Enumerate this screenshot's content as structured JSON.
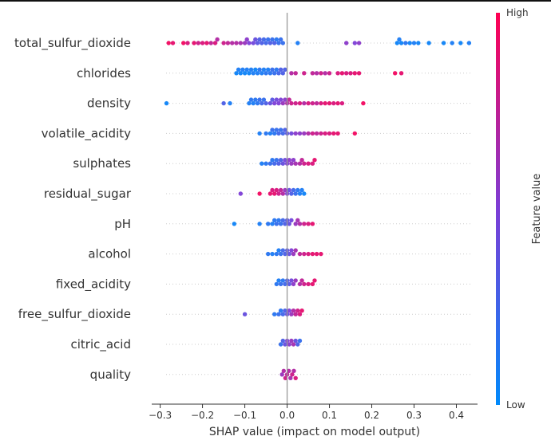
{
  "chart_data": {
    "type": "scatter",
    "subtype": "shap-beeswarm",
    "title": "",
    "xlabel": "SHAP value (impact on model output)",
    "ylabel": "",
    "xlim": [
      -0.32,
      0.45
    ],
    "xticks": [
      {
        "value": -0.3,
        "label": "−0.3"
      },
      {
        "value": -0.2,
        "label": "−0.2"
      },
      {
        "value": -0.1,
        "label": "−0.1"
      },
      {
        "value": 0.0,
        "label": "0.0"
      },
      {
        "value": 0.1,
        "label": "0.1"
      },
      {
        "value": 0.2,
        "label": "0.2"
      },
      {
        "value": 0.3,
        "label": "0.3"
      },
      {
        "value": 0.4,
        "label": "0.4"
      }
    ],
    "colorbar": {
      "title": "Feature value",
      "high_label": "High",
      "low_label": "Low",
      "low_color": "#008afb",
      "mid_color": "#7c3dd6",
      "high_color": "#ff0052"
    },
    "features": [
      {
        "name": "total_sulfur_dioxide",
        "points": [
          [
            -0.28,
            0.95
          ],
          [
            -0.27,
            0.9
          ],
          [
            -0.245,
            0.95
          ],
          [
            -0.235,
            0.85
          ],
          [
            -0.22,
            0.9
          ],
          [
            -0.21,
            0.8
          ],
          [
            -0.2,
            0.85
          ],
          [
            -0.19,
            0.9
          ],
          [
            -0.18,
            0.75
          ],
          [
            -0.17,
            0.85
          ],
          [
            -0.165,
            0.7
          ],
          [
            -0.15,
            0.8
          ],
          [
            -0.14,
            0.75
          ],
          [
            -0.13,
            0.7
          ],
          [
            -0.12,
            0.7
          ],
          [
            -0.11,
            0.65
          ],
          [
            -0.1,
            0.6
          ],
          [
            -0.095,
            0.55
          ],
          [
            -0.09,
            0.5
          ],
          [
            -0.08,
            0.45
          ],
          [
            -0.075,
            0.4
          ],
          [
            -0.07,
            0.35
          ],
          [
            -0.065,
            0.3
          ],
          [
            -0.06,
            0.3
          ],
          [
            -0.055,
            0.25
          ],
          [
            -0.05,
            0.25
          ],
          [
            -0.045,
            0.2
          ],
          [
            -0.04,
            0.3
          ],
          [
            -0.035,
            0.2
          ],
          [
            -0.03,
            0.3
          ],
          [
            -0.025,
            0.15
          ],
          [
            -0.02,
            0.2
          ],
          [
            -0.015,
            0.2
          ],
          [
            -0.01,
            0.2
          ],
          [
            0.025,
            0.1
          ],
          [
            0.14,
            0.55
          ],
          [
            0.16,
            0.5
          ],
          [
            0.17,
            0.55
          ],
          [
            0.26,
            0.05
          ],
          [
            0.265,
            0.1
          ],
          [
            0.27,
            0.05
          ],
          [
            0.28,
            0.15
          ],
          [
            0.29,
            0.05
          ],
          [
            0.3,
            0.1
          ],
          [
            0.31,
            0.05
          ],
          [
            0.335,
            0.05
          ],
          [
            0.37,
            0.05
          ],
          [
            0.39,
            0.1
          ],
          [
            0.41,
            0.05
          ],
          [
            0.43,
            0.1
          ]
        ]
      },
      {
        "name": "chlorides",
        "points": [
          [
            -0.12,
            0.05
          ],
          [
            -0.115,
            0.1
          ],
          [
            -0.11,
            0.05
          ],
          [
            -0.105,
            0.1
          ],
          [
            -0.1,
            0.05
          ],
          [
            -0.095,
            0.1
          ],
          [
            -0.09,
            0.05
          ],
          [
            -0.085,
            0.1
          ],
          [
            -0.08,
            0.1
          ],
          [
            -0.075,
            0.05
          ],
          [
            -0.07,
            0.1
          ],
          [
            -0.065,
            0.15
          ],
          [
            -0.06,
            0.1
          ],
          [
            -0.055,
            0.1
          ],
          [
            -0.05,
            0.15
          ],
          [
            -0.045,
            0.1
          ],
          [
            -0.04,
            0.15
          ],
          [
            -0.035,
            0.2
          ],
          [
            -0.03,
            0.2
          ],
          [
            -0.025,
            0.15
          ],
          [
            -0.02,
            0.25
          ],
          [
            -0.015,
            0.3
          ],
          [
            -0.01,
            0.3
          ],
          [
            -0.005,
            0.3
          ],
          [
            0.01,
            0.7
          ],
          [
            0.02,
            0.75
          ],
          [
            0.04,
            0.8
          ],
          [
            0.06,
            0.75
          ],
          [
            0.07,
            0.7
          ],
          [
            0.08,
            0.8
          ],
          [
            0.09,
            0.7
          ],
          [
            0.1,
            0.8
          ],
          [
            0.12,
            0.85
          ],
          [
            0.13,
            0.9
          ],
          [
            0.14,
            0.85
          ],
          [
            0.15,
            0.85
          ],
          [
            0.16,
            0.9
          ],
          [
            0.17,
            0.9
          ],
          [
            0.255,
            0.95
          ],
          [
            0.27,
            0.9
          ]
        ]
      },
      {
        "name": "density",
        "points": [
          [
            -0.285,
            0.05
          ],
          [
            -0.15,
            0.3
          ],
          [
            -0.135,
            0.1
          ],
          [
            -0.09,
            0.1
          ],
          [
            -0.085,
            0.15
          ],
          [
            -0.08,
            0.1
          ],
          [
            -0.075,
            0.15
          ],
          [
            -0.07,
            0.15
          ],
          [
            -0.065,
            0.2
          ],
          [
            -0.06,
            0.25
          ],
          [
            -0.055,
            0.2
          ],
          [
            -0.05,
            0.3
          ],
          [
            -0.04,
            0.4
          ],
          [
            -0.035,
            0.35
          ],
          [
            -0.03,
            0.5
          ],
          [
            -0.025,
            0.45
          ],
          [
            -0.02,
            0.5
          ],
          [
            -0.015,
            0.5
          ],
          [
            -0.01,
            0.6
          ],
          [
            -0.005,
            0.55
          ],
          [
            0.0,
            0.7
          ],
          [
            0.005,
            0.75
          ],
          [
            0.01,
            0.8
          ],
          [
            0.02,
            0.8
          ],
          [
            0.03,
            0.85
          ],
          [
            0.04,
            0.7
          ],
          [
            0.05,
            0.85
          ],
          [
            0.06,
            0.8
          ],
          [
            0.07,
            0.75
          ],
          [
            0.08,
            0.85
          ],
          [
            0.09,
            0.9
          ],
          [
            0.1,
            0.9
          ],
          [
            0.11,
            0.85
          ],
          [
            0.12,
            0.9
          ],
          [
            0.13,
            0.85
          ],
          [
            0.18,
            0.95
          ]
        ]
      },
      {
        "name": "volatile_acidity",
        "points": [
          [
            -0.065,
            0.1
          ],
          [
            -0.05,
            0.15
          ],
          [
            -0.04,
            0.1
          ],
          [
            -0.035,
            0.2
          ],
          [
            -0.03,
            0.15
          ],
          [
            -0.025,
            0.2
          ],
          [
            -0.02,
            0.25
          ],
          [
            -0.015,
            0.2
          ],
          [
            -0.01,
            0.25
          ],
          [
            -0.005,
            0.3
          ],
          [
            0.0,
            0.35
          ],
          [
            0.01,
            0.45
          ],
          [
            0.02,
            0.55
          ],
          [
            0.03,
            0.55
          ],
          [
            0.04,
            0.6
          ],
          [
            0.05,
            0.7
          ],
          [
            0.06,
            0.8
          ],
          [
            0.07,
            0.75
          ],
          [
            0.08,
            0.8
          ],
          [
            0.09,
            0.85
          ],
          [
            0.1,
            0.85
          ],
          [
            0.11,
            0.9
          ],
          [
            0.12,
            0.9
          ],
          [
            0.16,
            0.95
          ]
        ]
      },
      {
        "name": "sulphates",
        "points": [
          [
            -0.06,
            0.1
          ],
          [
            -0.05,
            0.15
          ],
          [
            -0.04,
            0.2
          ],
          [
            -0.035,
            0.15
          ],
          [
            -0.03,
            0.25
          ],
          [
            -0.025,
            0.2
          ],
          [
            -0.02,
            0.3
          ],
          [
            -0.015,
            0.3
          ],
          [
            -0.01,
            0.4
          ],
          [
            -0.005,
            0.45
          ],
          [
            0.0,
            0.5
          ],
          [
            0.005,
            0.55
          ],
          [
            0.01,
            0.6
          ],
          [
            0.015,
            0.55
          ],
          [
            0.02,
            0.65
          ],
          [
            0.03,
            0.7
          ],
          [
            0.035,
            0.75
          ],
          [
            0.04,
            0.8
          ],
          [
            0.05,
            0.85
          ],
          [
            0.06,
            0.85
          ],
          [
            0.065,
            0.9
          ]
        ]
      },
      {
        "name": "residual_sugar",
        "points": [
          [
            -0.11,
            0.5
          ],
          [
            -0.065,
            0.95
          ],
          [
            -0.04,
            0.9
          ],
          [
            -0.035,
            0.85
          ],
          [
            -0.03,
            0.9
          ],
          [
            -0.025,
            0.85
          ],
          [
            -0.02,
            0.8
          ],
          [
            -0.015,
            0.75
          ],
          [
            -0.01,
            0.7
          ],
          [
            -0.005,
            0.6
          ],
          [
            0.0,
            0.5
          ],
          [
            0.005,
            0.4
          ],
          [
            0.01,
            0.3
          ],
          [
            0.015,
            0.25
          ],
          [
            0.02,
            0.2
          ],
          [
            0.025,
            0.15
          ],
          [
            0.03,
            0.1
          ],
          [
            0.035,
            0.1
          ],
          [
            0.04,
            0.05
          ]
        ]
      },
      {
        "name": "pH",
        "points": [
          [
            -0.125,
            0.05
          ],
          [
            -0.065,
            0.1
          ],
          [
            -0.045,
            0.15
          ],
          [
            -0.035,
            0.1
          ],
          [
            -0.03,
            0.15
          ],
          [
            -0.025,
            0.2
          ],
          [
            -0.02,
            0.15
          ],
          [
            -0.015,
            0.2
          ],
          [
            -0.01,
            0.25
          ],
          [
            -0.005,
            0.3
          ],
          [
            0.0,
            0.35
          ],
          [
            0.005,
            0.4
          ],
          [
            0.01,
            0.45
          ],
          [
            0.02,
            0.6
          ],
          [
            0.025,
            0.65
          ],
          [
            0.03,
            0.7
          ],
          [
            0.04,
            0.8
          ],
          [
            0.05,
            0.85
          ],
          [
            0.06,
            0.9
          ]
        ]
      },
      {
        "name": "alcohol",
        "points": [
          [
            -0.045,
            0.15
          ],
          [
            -0.035,
            0.1
          ],
          [
            -0.025,
            0.15
          ],
          [
            -0.02,
            0.1
          ],
          [
            -0.015,
            0.2
          ],
          [
            -0.01,
            0.25
          ],
          [
            -0.005,
            0.3
          ],
          [
            0.0,
            0.35
          ],
          [
            0.005,
            0.4
          ],
          [
            0.01,
            0.5
          ],
          [
            0.015,
            0.6
          ],
          [
            0.02,
            0.65
          ],
          [
            0.03,
            0.75
          ],
          [
            0.04,
            0.8
          ],
          [
            0.05,
            0.85
          ],
          [
            0.06,
            0.9
          ],
          [
            0.07,
            0.9
          ],
          [
            0.08,
            0.9
          ]
        ]
      },
      {
        "name": "fixed_acidity",
        "points": [
          [
            -0.025,
            0.15
          ],
          [
            -0.02,
            0.1
          ],
          [
            -0.015,
            0.2
          ],
          [
            -0.01,
            0.15
          ],
          [
            -0.005,
            0.25
          ],
          [
            0.0,
            0.3
          ],
          [
            0.005,
            0.35
          ],
          [
            0.01,
            0.45
          ],
          [
            0.015,
            0.55
          ],
          [
            0.02,
            0.6
          ],
          [
            0.03,
            0.7
          ],
          [
            0.035,
            0.75
          ],
          [
            0.04,
            0.8
          ],
          [
            0.05,
            0.85
          ],
          [
            0.06,
            0.9
          ],
          [
            0.065,
            0.9
          ]
        ]
      },
      {
        "name": "free_sulfur_dioxide",
        "points": [
          [
            -0.1,
            0.4
          ],
          [
            -0.03,
            0.15
          ],
          [
            -0.02,
            0.2
          ],
          [
            -0.015,
            0.15
          ],
          [
            -0.01,
            0.25
          ],
          [
            -0.005,
            0.3
          ],
          [
            0.0,
            0.4
          ],
          [
            0.005,
            0.5
          ],
          [
            0.01,
            0.6
          ],
          [
            0.015,
            0.7
          ],
          [
            0.02,
            0.75
          ],
          [
            0.025,
            0.8
          ],
          [
            0.03,
            0.85
          ],
          [
            0.035,
            0.9
          ]
        ]
      },
      {
        "name": "citric_acid",
        "points": [
          [
            -0.015,
            0.2
          ],
          [
            -0.01,
            0.3
          ],
          [
            -0.005,
            0.4
          ],
          [
            0.0,
            0.5
          ],
          [
            0.005,
            0.55
          ],
          [
            0.01,
            0.6
          ],
          [
            0.015,
            0.65
          ],
          [
            0.02,
            0.4
          ],
          [
            0.025,
            0.3
          ],
          [
            0.03,
            0.2
          ]
        ]
      },
      {
        "name": "quality",
        "points": [
          [
            -0.012,
            0.6
          ],
          [
            -0.008,
            0.7
          ],
          [
            -0.004,
            0.8
          ],
          [
            0.0,
            0.75
          ],
          [
            0.004,
            0.7
          ],
          [
            0.008,
            0.65
          ],
          [
            0.012,
            0.8
          ],
          [
            0.016,
            0.7
          ],
          [
            0.02,
            0.85
          ]
        ]
      }
    ]
  }
}
